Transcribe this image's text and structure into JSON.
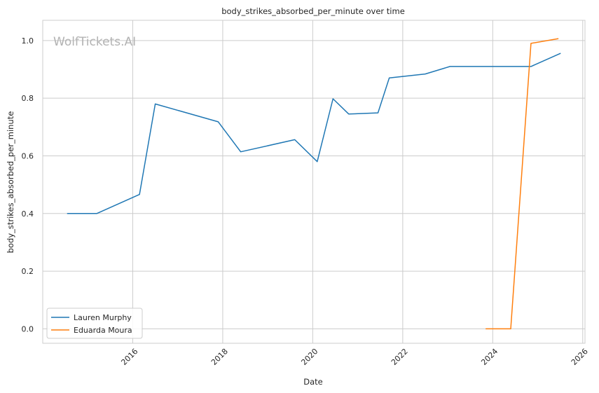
{
  "chart_data": {
    "type": "line",
    "title": "body_strikes_absorbed_per_minute over time",
    "xlabel": "Date",
    "ylabel": "body_strikes_absorbed_per_minute",
    "watermark": "WolfTickets.AI",
    "xlim": [
      2014.0,
      2026.05
    ],
    "ylim": [
      -0.05,
      1.07
    ],
    "x_ticks": [
      2016,
      2018,
      2020,
      2022,
      2024,
      2026
    ],
    "y_ticks": [
      0.0,
      0.2,
      0.4,
      0.6,
      0.8,
      1.0
    ],
    "y_tick_labels": [
      "0.0",
      "0.2",
      "0.4",
      "0.6",
      "0.8",
      "1.0"
    ],
    "grid": true,
    "legend_position": "lower-left",
    "series": [
      {
        "name": "Lauren Murphy",
        "color": "#1f77b4",
        "points": [
          [
            2014.55,
            0.4
          ],
          [
            2015.2,
            0.4
          ],
          [
            2016.15,
            0.466
          ],
          [
            2016.5,
            0.78
          ],
          [
            2017.9,
            0.718
          ],
          [
            2018.4,
            0.614
          ],
          [
            2019.6,
            0.656
          ],
          [
            2020.1,
            0.58
          ],
          [
            2020.45,
            0.798
          ],
          [
            2020.8,
            0.745
          ],
          [
            2021.45,
            0.749
          ],
          [
            2021.7,
            0.87
          ],
          [
            2022.5,
            0.884
          ],
          [
            2023.05,
            0.91
          ],
          [
            2024.85,
            0.91
          ],
          [
            2025.5,
            0.955
          ]
        ]
      },
      {
        "name": "Eduarda Moura",
        "color": "#ff7f0e",
        "points": [
          [
            2023.85,
            0.0
          ],
          [
            2024.4,
            0.0
          ],
          [
            2024.85,
            0.99
          ],
          [
            2025.45,
            1.006
          ]
        ]
      }
    ]
  }
}
